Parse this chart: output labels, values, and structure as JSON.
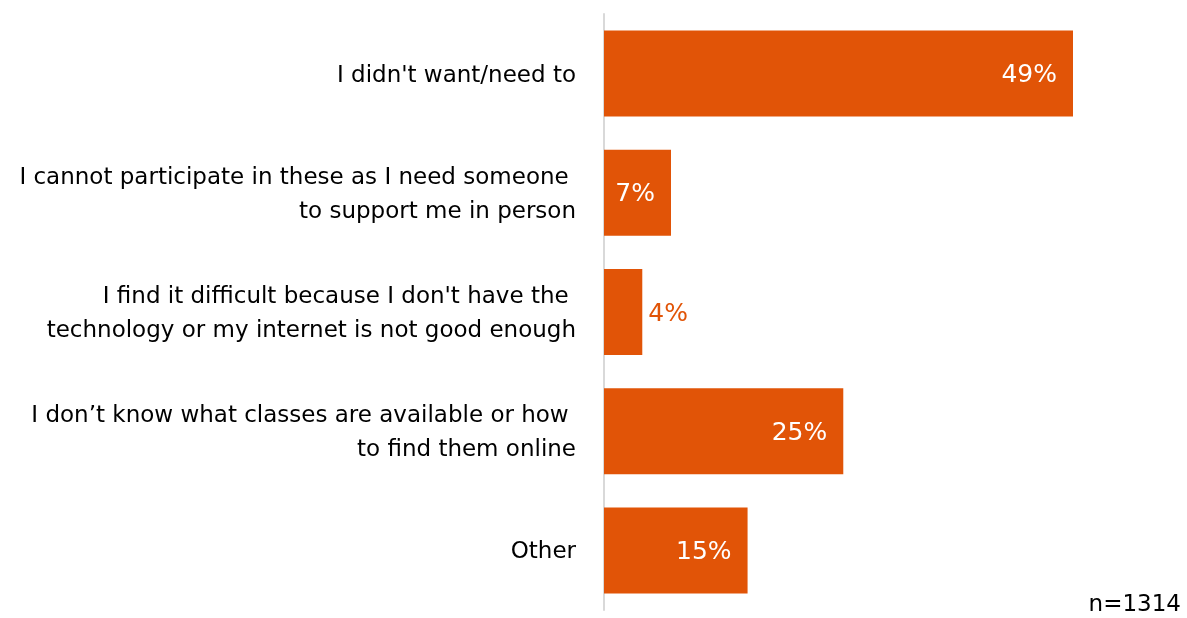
{
  "chart_data": {
    "type": "bar",
    "orientation": "horizontal",
    "categories": [
      "I didn't want/need to",
      "I cannot participate in these as I need someone to support me in person",
      "I find it difficult because I don't have the technology or my internet is not good enough",
      "I don’t know what classes are available or how to find them online",
      "Other"
    ],
    "values": [
      49,
      7,
      4,
      25,
      15
    ],
    "value_labels": [
      "49%",
      "7%",
      "4%",
      "25%",
      "15%"
    ],
    "color": "#e15407",
    "annotations": [
      "n=1314"
    ]
  }
}
